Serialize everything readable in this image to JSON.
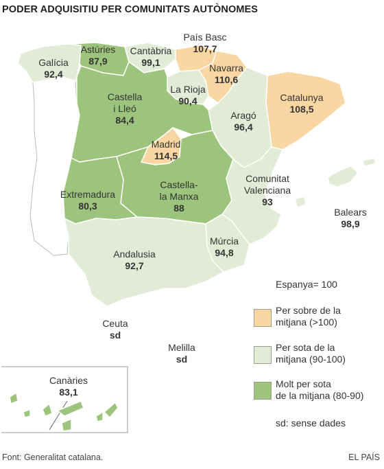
{
  "title": "PODER ADQUISITIU PER COMUNITATS AUTÒNOMES",
  "colors": {
    "above": "#f9d6a2",
    "below": "#e2ebd6",
    "far_below": "#9dc47c",
    "portugal": "#ffffff",
    "border": "#ffffff",
    "coast": "#b5bdb0"
  },
  "regions": {
    "galicia": {
      "name": "Galícia",
      "value": "92,4",
      "category": "below"
    },
    "asturies": {
      "name": "Astúries",
      "value": "87,9",
      "category": "far_below"
    },
    "cantabria": {
      "name": "Cantàbria",
      "value": "99,1",
      "category": "below"
    },
    "pais_basc": {
      "name": "País Basc",
      "value": "107,7",
      "category": "above"
    },
    "navarra": {
      "name": "Navarra",
      "value": "110,6",
      "category": "above"
    },
    "la_rioja": {
      "name": "La Rioja",
      "value": "90,4",
      "category": "below"
    },
    "catalunya": {
      "name": "Catalunya",
      "value": "108,5",
      "category": "above"
    },
    "arago": {
      "name": "Aragó",
      "value": "96,4",
      "category": "below"
    },
    "castella_lleo": {
      "name": "Castella i Lleó",
      "value": "84,4",
      "category": "far_below"
    },
    "madrid": {
      "name": "Madrid",
      "value": "114,5",
      "category": "above"
    },
    "castella_manxa": {
      "name": "Castella-la Manxa",
      "value": "88",
      "category": "far_below"
    },
    "extremadura": {
      "name": "Extremadura",
      "value": "80,3",
      "category": "far_below"
    },
    "comunitat_valenciana": {
      "name": "Comunitat Valenciana",
      "value": "93",
      "category": "below"
    },
    "balears": {
      "name": "Balears",
      "value": "98,9",
      "category": "below"
    },
    "murcia": {
      "name": "Múrcia",
      "value": "94,8",
      "category": "below"
    },
    "andalusia": {
      "name": "Andalusia",
      "value": "92,7",
      "category": "below"
    },
    "ceuta": {
      "name": "Ceuta",
      "value": "sd",
      "category": "none"
    },
    "melilla": {
      "name": "Melilla",
      "value": "sd",
      "category": "none"
    },
    "canaries": {
      "name": "Canàries",
      "value": "83,1",
      "category": "far_below"
    }
  },
  "labels": {
    "galicia": [
      "Galícia"
    ],
    "asturies": [
      "Astúries"
    ],
    "cantabria": [
      "Cantàbria"
    ],
    "pais_basc": [
      "País Basc"
    ],
    "navarra": [
      "Navarra"
    ],
    "la_rioja": [
      "La Rioja"
    ],
    "catalunya": [
      "Catalunya"
    ],
    "arago": [
      "Aragó"
    ],
    "castella_lleo": [
      "Castella",
      "i Lleó"
    ],
    "madrid": [
      "Madrid"
    ],
    "castella_manxa": [
      "Castella-",
      "la Manxa"
    ],
    "extremadura": [
      "Extremadura"
    ],
    "comunitat_valenciana": [
      "Comunitat",
      "Valenciana"
    ],
    "balears": [
      "Balears"
    ],
    "murcia": [
      "Múrcia"
    ],
    "andalusia": [
      "Andalusia"
    ],
    "ceuta": [
      "Ceuta"
    ],
    "melilla": [
      "Melilla"
    ],
    "canaries": [
      "Canàries"
    ]
  },
  "legend": {
    "baseline": "Espanya= 100",
    "above": [
      "Per sobre de la",
      "mitjana (>100)"
    ],
    "below": [
      "Per sota de la",
      "mitjana (90-100)"
    ],
    "far_below": [
      "Molt per sota",
      "de la mitjana (80-90)"
    ],
    "no_data": "sd: sense dades"
  },
  "footer": {
    "source": "Font: Generalitat catalana.",
    "brand": "EL PAÍS"
  }
}
